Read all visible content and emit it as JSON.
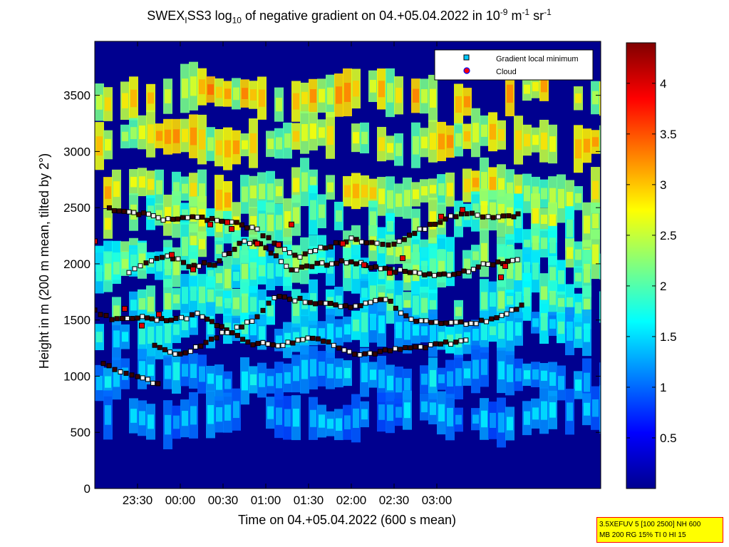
{
  "chart_data": {
    "type": "heatmap",
    "title": {
      "prefix": "SWEX",
      "sub1": "I",
      "mid": "SS3 log",
      "sub2": "10",
      "rest": " of negative gradient on 04.+05.04.2022 in 10",
      "sup1": "-9",
      "unit1": " m",
      "sup2": "-1",
      "unit2": " sr",
      "sup3": "-1"
    },
    "xlabel": "Time on 04.+05.04.2022 (600 s mean)",
    "ylabel": "Height in m (200 m mean, tilted by 2°)",
    "x_ticks": [
      "23:30",
      "00:00",
      "00:30",
      "01:00",
      "01:30",
      "02:00",
      "02:30",
      "03:00"
    ],
    "y_ticks": [
      0,
      500,
      1000,
      1500,
      2000,
      2500,
      3000,
      3500
    ],
    "ylim": [
      0,
      3980
    ],
    "colorbar": {
      "ticks": [
        0.5,
        1,
        1.5,
        2,
        2.5,
        3,
        3.5,
        4
      ],
      "range": [
        0,
        4.4
      ],
      "colormap": "jet"
    },
    "legend": {
      "position": "top-right",
      "entries": [
        {
          "label": "Gradient local minimum",
          "marker": "square",
          "color": "#00c8ff"
        },
        {
          "label": "Cloud",
          "marker": "circle",
          "color": "#ff0000"
        }
      ]
    },
    "layers": [
      {
        "name": "yellow-upper",
        "height_m": 3500,
        "value": 2.9
      },
      {
        "name": "yellow-mid",
        "height_m": 3100,
        "value": 2.8
      },
      {
        "name": "yellow-low",
        "height_m": 2650,
        "value": 2.7
      },
      {
        "name": "layer-2400",
        "height_m": 2400,
        "value": 2.3
      },
      {
        "name": "layer-2100",
        "height_m": 2100,
        "value": 2.2
      },
      {
        "name": "layer-1950",
        "height_m": 1950,
        "value": 2.0
      },
      {
        "name": "layer-1650",
        "height_m": 1650,
        "value": 1.9
      },
      {
        "name": "layer-1400",
        "height_m": 1400,
        "value": 1.6
      },
      {
        "name": "layer-1000",
        "height_m": 1000,
        "value": 1.3
      },
      {
        "name": "layer-650",
        "height_m": 650,
        "value": 1.2
      }
    ],
    "minimum_tracks": [
      {
        "name": "track-2400",
        "points": [
          [
            23.17,
            2490
          ],
          [
            23.4,
            2470
          ],
          [
            23.8,
            2400
          ],
          [
            24.2,
            2410
          ],
          [
            24.6,
            2380
          ],
          [
            24.9,
            2300
          ],
          [
            25.1,
            2180
          ],
          [
            25.4,
            2060
          ],
          [
            25.7,
            2150
          ],
          [
            26.0,
            2220
          ],
          [
            26.3,
            2180
          ],
          [
            26.5,
            2170
          ],
          [
            26.8,
            2300
          ],
          [
            27.1,
            2400
          ],
          [
            27.35,
            2460
          ],
          [
            27.6,
            2420
          ],
          [
            27.9,
            2430
          ],
          [
            28.0,
            2440
          ]
        ]
      },
      {
        "name": "track-2000",
        "points": [
          [
            23.4,
            1920
          ],
          [
            23.6,
            2000
          ],
          [
            23.85,
            2080
          ],
          [
            24.1,
            1990
          ],
          [
            24.4,
            2000
          ],
          [
            24.75,
            2210
          ],
          [
            25.0,
            2150
          ],
          [
            25.3,
            1950
          ],
          [
            25.6,
            1990
          ],
          [
            26.0,
            2020
          ],
          [
            26.4,
            1950
          ],
          [
            26.8,
            1910
          ],
          [
            27.2,
            1900
          ],
          [
            27.6,
            2000
          ],
          [
            28.0,
            2030
          ]
        ]
      },
      {
        "name": "track-1550",
        "points": [
          [
            23.0,
            1580
          ],
          [
            23.2,
            1500
          ],
          [
            23.5,
            1520
          ],
          [
            23.95,
            1500
          ],
          [
            24.2,
            1550
          ],
          [
            24.6,
            1400
          ],
          [
            24.9,
            1520
          ],
          [
            25.1,
            1700
          ],
          [
            25.4,
            1680
          ],
          [
            25.7,
            1640
          ],
          [
            26.05,
            1620
          ],
          [
            26.4,
            1690
          ],
          [
            26.7,
            1500
          ],
          [
            27.05,
            1480
          ],
          [
            27.4,
            1470
          ],
          [
            27.7,
            1520
          ],
          [
            28.05,
            1640
          ]
        ]
      },
      {
        "name": "track-1250",
        "points": [
          [
            23.7,
            1260
          ],
          [
            24.0,
            1190
          ],
          [
            24.3,
            1300
          ],
          [
            24.55,
            1400
          ],
          [
            24.85,
            1290
          ],
          [
            25.2,
            1280
          ],
          [
            25.55,
            1350
          ],
          [
            26.1,
            1190
          ],
          [
            27.4,
            1320
          ]
        ]
      },
      {
        "name": "track-1000",
        "points": [
          [
            23.1,
            1120
          ],
          [
            23.3,
            1050
          ],
          [
            23.5,
            1000
          ],
          [
            23.8,
            900
          ]
        ]
      }
    ],
    "clouds": [
      [
        23.0,
        2200
      ],
      [
        23.35,
        1600
      ],
      [
        23.55,
        1450
      ],
      [
        23.75,
        1550
      ],
      [
        23.9,
        2080
      ],
      [
        24.15,
        1950
      ],
      [
        24.35,
        2350
      ],
      [
        24.55,
        2370
      ],
      [
        24.6,
        2310
      ],
      [
        24.9,
        2180
      ],
      [
        25.15,
        2170
      ],
      [
        25.3,
        2350
      ],
      [
        25.9,
        2180
      ],
      [
        26.15,
        1990
      ],
      [
        26.45,
        1920
      ],
      [
        26.6,
        2050
      ],
      [
        27.05,
        2420
      ],
      [
        27.3,
        2480
      ],
      [
        27.75,
        1880
      ],
      [
        27.8,
        1980
      ]
    ]
  },
  "info_box": {
    "line1": "3.5XEFUV 5 [100 2500] NH 600",
    "line2": "MB 200 RG 15% TI 0 HI 15"
  }
}
